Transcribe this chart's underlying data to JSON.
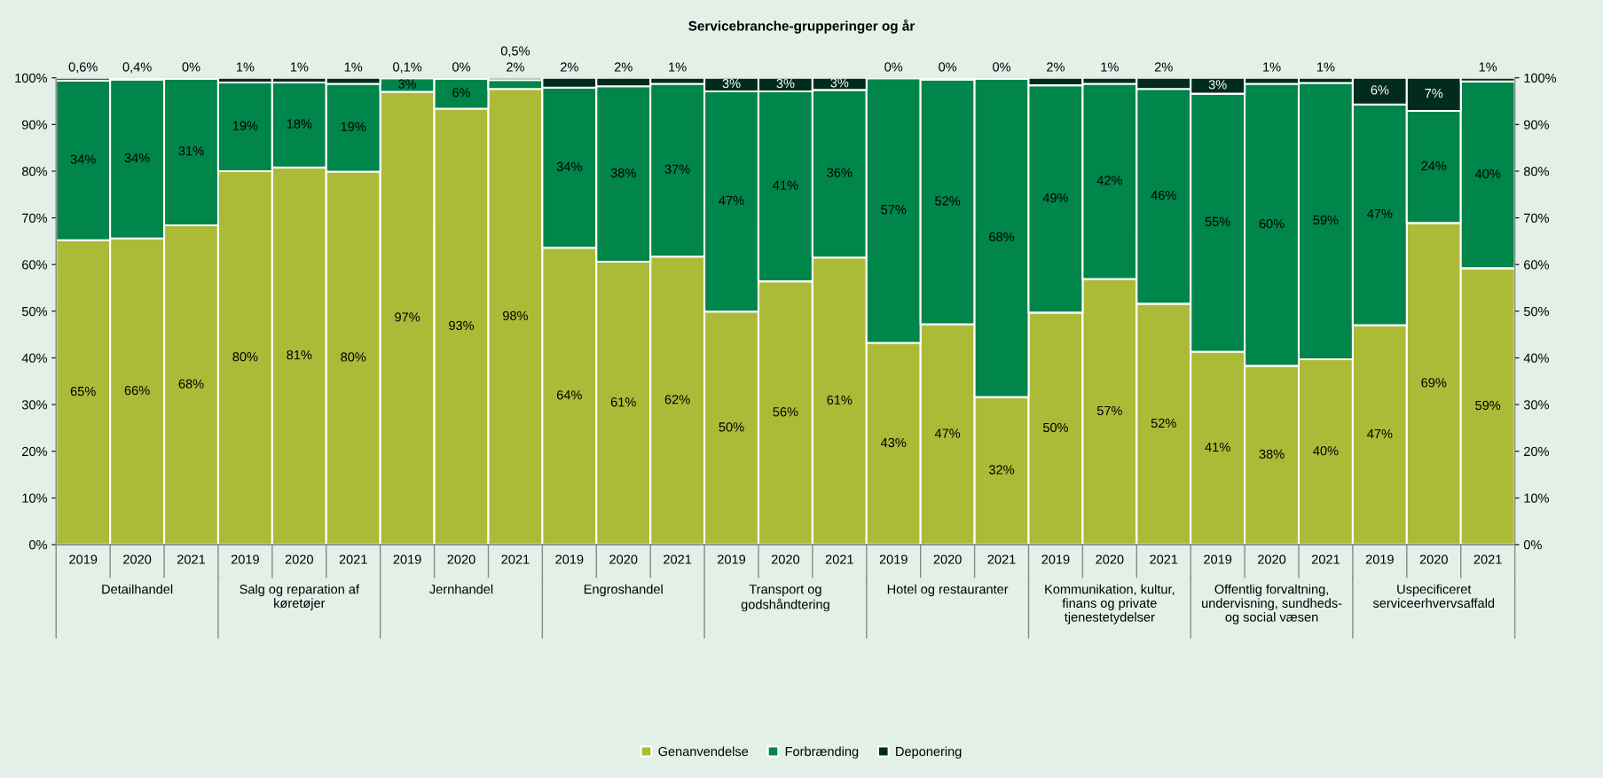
{
  "chart_data": {
    "type": "bar",
    "title": "Servicebranche-grupperinger og år",
    "stacked": true,
    "categories": [
      "2019",
      "2020",
      "2021",
      "2019",
      "2020",
      "2021",
      "2019",
      "2020",
      "2021",
      "2019",
      "2020",
      "2021",
      "2019",
      "2020",
      "2021",
      "2019",
      "2020",
      "2021",
      "2019",
      "2020",
      "2021",
      "2019",
      "2020",
      "2021",
      "2019",
      "2020",
      "2021"
    ],
    "annotations": [
      "Detailhandel",
      "Salg og reparation af køretøjer",
      "Jernhandel",
      "Engroshandel",
      "Transport og godshåndtering",
      "Hotel og restauranter",
      "Kommunikation, kultur, finans og private tjenestetydelser",
      "Offentlig forvaltning, undervisning, sundheds- og social væsen",
      "Uspecificeret serviceerhvervsaffald"
    ],
    "series": [
      {
        "name": "Genanvendelse",
        "color": "#acbb37",
        "values": [
          65.2,
          65.6,
          68.4,
          80.0,
          80.8,
          79.9,
          97.0,
          93.4,
          97.6,
          63.6,
          60.6,
          61.7,
          49.9,
          56.4,
          61.5,
          43.2,
          47.2,
          31.6,
          49.7,
          56.9,
          51.6,
          41.3,
          38.3,
          39.7,
          47.0,
          68.9,
          59.2
        ],
        "value_labels": [
          "65%",
          "66%",
          "68%",
          "80%",
          "81%",
          "80%",
          "97%",
          "93%",
          "98%",
          "64%",
          "61%",
          "62%",
          "50%",
          "56%",
          "61%",
          "43%",
          "47%",
          "32%",
          "50%",
          "57%",
          "52%",
          "41%",
          "38%",
          "40%",
          "47%",
          "69%",
          "59%"
        ]
      },
      {
        "name": "Forbrænding",
        "color": "#00854a",
        "values": [
          34.2,
          34.0,
          31.4,
          19.0,
          18.2,
          18.8,
          2.9,
          6.4,
          1.9,
          34.3,
          37.6,
          37.0,
          47.2,
          40.7,
          35.9,
          56.7,
          52.4,
          68.2,
          48.7,
          41.8,
          46.0,
          55.3,
          60.4,
          59.2,
          47.3,
          24.0,
          40.0
        ],
        "value_labels": [
          "34%",
          "34%",
          "31%",
          "19%",
          "18%",
          "19%",
          "3%",
          "6%",
          "2%",
          "34%",
          "38%",
          "37%",
          "47%",
          "41%",
          "36%",
          "57%",
          "52%",
          "68%",
          "49%",
          "42%",
          "46%",
          "55%",
          "60%",
          "59%",
          "47%",
          "24%",
          "40%"
        ]
      },
      {
        "name": "Deponering",
        "color": "#002b1d",
        "values": [
          0.6,
          0.4,
          0.2,
          1.0,
          1.0,
          1.3,
          0.1,
          0.2,
          0.5,
          2.1,
          1.8,
          1.3,
          2.9,
          2.9,
          2.6,
          0.1,
          0.4,
          0.2,
          1.6,
          1.3,
          2.4,
          3.4,
          1.3,
          1.1,
          5.7,
          7.1,
          0.8
        ],
        "value_labels": [
          "0,6%",
          "0,4%",
          "0%",
          "1%",
          "1%",
          "1%",
          "0,1%",
          "0%",
          "0,5%",
          "2%",
          "2%",
          "1%",
          "3%",
          "3%",
          "3%",
          "0%",
          "0%",
          "0%",
          "2%",
          "1%",
          "2%",
          "3%",
          "1%",
          "1%",
          "6%",
          "7%",
          "1%"
        ]
      }
    ],
    "ylim": [
      0,
      100
    ],
    "yticks": [
      {
        "value": 0,
        "label": "0%"
      },
      {
        "value": 10,
        "label": "10%"
      },
      {
        "value": 20,
        "label": "20%"
      },
      {
        "value": 30,
        "label": "30%"
      },
      {
        "value": 40,
        "label": "40%"
      },
      {
        "value": 50,
        "label": "50%"
      },
      {
        "value": 60,
        "label": "60%"
      },
      {
        "value": 70,
        "label": "70%"
      },
      {
        "value": 80,
        "label": "80%"
      },
      {
        "value": 90,
        "label": "90%"
      },
      {
        "value": 100,
        "label": "100%"
      }
    ],
    "y2lim": [
      0,
      100
    ],
    "y2ticks": [
      {
        "value": 0,
        "label": "0%"
      },
      {
        "value": 10,
        "label": "10%"
      },
      {
        "value": 20,
        "label": "20%"
      },
      {
        "value": 30,
        "label": "30%"
      },
      {
        "value": 40,
        "label": "40%"
      },
      {
        "value": 50,
        "label": "50%"
      },
      {
        "value": 60,
        "label": "60%"
      },
      {
        "value": 70,
        "label": "70%"
      },
      {
        "value": 80,
        "label": "80%"
      },
      {
        "value": 90,
        "label": "90%"
      },
      {
        "value": 100,
        "label": "100%"
      }
    ],
    "grid": false,
    "legend": "bottom"
  }
}
